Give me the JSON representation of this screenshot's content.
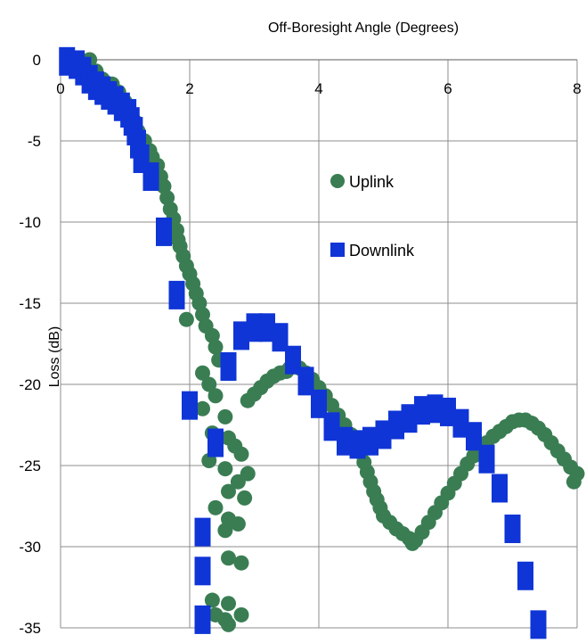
{
  "chart_data": {
    "type": "scatter",
    "title": "",
    "xlabel": "Off-Boresight Angle (Degrees)",
    "ylabel": "Loss (dB)",
    "xlim": [
      0,
      8
    ],
    "ylim": [
      -35,
      0
    ],
    "x_ticks": [
      "0",
      "2",
      "4",
      "6",
      "8"
    ],
    "y_ticks": [
      "0",
      "-5",
      "-10",
      "-15",
      "-20",
      "-25",
      "-30",
      "-35"
    ],
    "grid": true,
    "legend_position": "inside-right",
    "series": [
      {
        "name": "Uplink",
        "marker": "circle",
        "color": "#3a7d53",
        "points": [
          [
            0.15,
            -0.2
          ],
          [
            0.35,
            -0.4
          ],
          [
            0.45,
            0
          ],
          [
            0.55,
            -0.7
          ],
          [
            0.65,
            -1.2
          ],
          [
            0.8,
            -1.5
          ],
          [
            0.9,
            -2.0
          ],
          [
            1.0,
            -2.6
          ],
          [
            1.05,
            -3.3
          ],
          [
            1.15,
            -3.8
          ],
          [
            1.2,
            -4.4
          ],
          [
            1.3,
            -5.0
          ],
          [
            1.38,
            -5.6
          ],
          [
            1.42,
            -6.0
          ],
          [
            1.5,
            -6.5
          ],
          [
            1.55,
            -7.2
          ],
          [
            1.6,
            -7.8
          ],
          [
            1.65,
            -8.5
          ],
          [
            1.7,
            -9.2
          ],
          [
            1.75,
            -9.8
          ],
          [
            1.8,
            -10.5
          ],
          [
            1.82,
            -11.1
          ],
          [
            1.85,
            -11.5
          ],
          [
            1.9,
            -12.1
          ],
          [
            1.95,
            -12.7
          ],
          [
            2.0,
            -13.2
          ],
          [
            2.05,
            -13.8
          ],
          [
            2.1,
            -14.4
          ],
          [
            2.15,
            -15.0
          ],
          [
            2.2,
            -15.7
          ],
          [
            2.25,
            -16.4
          ],
          [
            1.95,
            -16.0
          ],
          [
            2.35,
            -17.0
          ],
          [
            2.4,
            -17.7
          ],
          [
            2.45,
            -18.5
          ],
          [
            2.2,
            -19.3
          ],
          [
            2.3,
            -20.0
          ],
          [
            2.4,
            -20.7
          ],
          [
            2.2,
            -21.5
          ],
          [
            2.55,
            -22.0
          ],
          [
            2.35,
            -23.0
          ],
          [
            2.6,
            -23.3
          ],
          [
            2.7,
            -23.8
          ],
          [
            2.8,
            -24.3
          ],
          [
            2.3,
            -24.7
          ],
          [
            2.55,
            -25.2
          ],
          [
            2.9,
            -25.5
          ],
          [
            2.75,
            -26.0
          ],
          [
            2.6,
            -26.6
          ],
          [
            2.85,
            -27.0
          ],
          [
            2.4,
            -27.6
          ],
          [
            2.6,
            -28.3
          ],
          [
            2.75,
            -28.6
          ],
          [
            2.55,
            -29.0
          ],
          [
            2.6,
            -30.7
          ],
          [
            2.8,
            -31.0
          ],
          [
            2.35,
            -33.3
          ],
          [
            2.6,
            -33.5
          ],
          [
            2.4,
            -34.2
          ],
          [
            2.55,
            -34.5
          ],
          [
            2.8,
            -34.2
          ],
          [
            2.6,
            -34.8
          ],
          [
            2.9,
            -21.0
          ],
          [
            3.0,
            -20.6
          ],
          [
            3.1,
            -20.2
          ],
          [
            3.2,
            -19.8
          ],
          [
            3.3,
            -19.5
          ],
          [
            3.4,
            -19.3
          ],
          [
            3.5,
            -19.2
          ],
          [
            3.55,
            -19.0
          ],
          [
            3.6,
            -18.9
          ],
          [
            3.7,
            -19.0
          ],
          [
            3.8,
            -19.3
          ],
          [
            3.9,
            -19.7
          ],
          [
            4.0,
            -20.2
          ],
          [
            4.1,
            -20.7
          ],
          [
            4.2,
            -21.3
          ],
          [
            4.3,
            -21.9
          ],
          [
            4.4,
            -22.5
          ],
          [
            4.5,
            -23.1
          ],
          [
            4.6,
            -23.6
          ],
          [
            4.65,
            -24.2
          ],
          [
            4.7,
            -24.8
          ],
          [
            4.75,
            -25.4
          ],
          [
            4.8,
            -26.0
          ],
          [
            4.85,
            -26.6
          ],
          [
            4.9,
            -27.1
          ],
          [
            4.95,
            -27.6
          ],
          [
            5.0,
            -28.1
          ],
          [
            5.1,
            -28.5
          ],
          [
            5.2,
            -28.9
          ],
          [
            5.3,
            -29.2
          ],
          [
            5.4,
            -29.5
          ],
          [
            5.45,
            -29.8
          ],
          [
            5.5,
            -29.6
          ],
          [
            5.6,
            -29.1
          ],
          [
            5.7,
            -28.5
          ],
          [
            5.8,
            -27.9
          ],
          [
            5.9,
            -27.3
          ],
          [
            6.0,
            -26.7
          ],
          [
            6.1,
            -26.1
          ],
          [
            6.2,
            -25.5
          ],
          [
            6.3,
            -24.9
          ],
          [
            6.4,
            -24.4
          ],
          [
            6.5,
            -24.0
          ],
          [
            6.6,
            -23.6
          ],
          [
            6.7,
            -23.2
          ],
          [
            6.8,
            -22.9
          ],
          [
            6.9,
            -22.6
          ],
          [
            7.0,
            -22.3
          ],
          [
            7.1,
            -22.2
          ],
          [
            7.2,
            -22.2
          ],
          [
            7.3,
            -22.4
          ],
          [
            7.4,
            -22.7
          ],
          [
            7.5,
            -23.1
          ],
          [
            7.6,
            -23.6
          ],
          [
            7.7,
            -24.1
          ],
          [
            7.8,
            -24.6
          ],
          [
            7.9,
            -25.1
          ],
          [
            8.0,
            -25.5
          ],
          [
            7.95,
            -26.0
          ]
        ]
      },
      {
        "name": "Downlink",
        "marker": "square",
        "color": "#0f35d6",
        "points": [
          [
            0.1,
            -0.1
          ],
          [
            0.25,
            -0.3
          ],
          [
            0.35,
            -0.7
          ],
          [
            0.45,
            -1.2
          ],
          [
            0.55,
            -1.6
          ],
          [
            0.65,
            -1.9
          ],
          [
            0.75,
            -2.2
          ],
          [
            0.85,
            -2.5
          ],
          [
            0.95,
            -2.9
          ],
          [
            1.05,
            -3.3
          ],
          [
            1.1,
            -3.8
          ],
          [
            1.15,
            -4.4
          ],
          [
            1.2,
            -5.2
          ],
          [
            1.25,
            -6.1
          ],
          [
            1.4,
            -7.2
          ],
          [
            1.6,
            -10.6
          ],
          [
            1.8,
            -14.5
          ],
          [
            2.0,
            -21.3
          ],
          [
            2.2,
            -29.1
          ],
          [
            2.2,
            -31.5
          ],
          [
            2.2,
            -34.5
          ],
          [
            2.4,
            -23.6
          ],
          [
            2.6,
            -18.9
          ],
          [
            2.8,
            -17.0
          ],
          [
            3.0,
            -16.5
          ],
          [
            3.2,
            -16.5
          ],
          [
            3.4,
            -17.1
          ],
          [
            3.6,
            -18.5
          ],
          [
            3.8,
            -19.8
          ],
          [
            4.0,
            -21.2
          ],
          [
            4.2,
            -22.6
          ],
          [
            4.4,
            -23.5
          ],
          [
            4.6,
            -23.7
          ],
          [
            4.8,
            -23.5
          ],
          [
            5.0,
            -23.1
          ],
          [
            5.2,
            -22.5
          ],
          [
            5.4,
            -22.1
          ],
          [
            5.6,
            -21.6
          ],
          [
            5.8,
            -21.5
          ],
          [
            6.0,
            -21.7
          ],
          [
            6.2,
            -22.4
          ],
          [
            6.4,
            -23.2
          ],
          [
            6.6,
            -24.6
          ],
          [
            6.8,
            -26.4
          ],
          [
            7.0,
            -28.9
          ],
          [
            7.2,
            -31.8
          ],
          [
            7.4,
            -34.8
          ]
        ]
      }
    ]
  }
}
